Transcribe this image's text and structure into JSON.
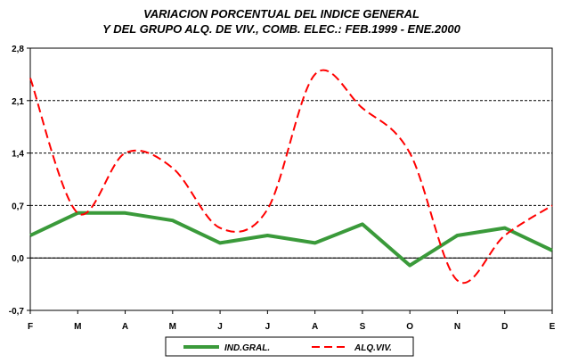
{
  "chart_data": {
    "type": "line",
    "title_lines": [
      "VARIACION PORCENTUAL DEL INDICE GENERAL",
      "Y DEL GRUPO ALQ. DE VIV., COMB.  ELEC.: FEB.1999 - ENE.2000"
    ],
    "categories": [
      "F",
      "M",
      "A",
      "M",
      "J",
      "J",
      "A",
      "S",
      "O",
      "N",
      "D",
      "E"
    ],
    "y_ticks": [
      "2,8",
      "2,1",
      "1,4",
      "0,7",
      "0,0",
      "-0,7"
    ],
    "y_tick_values": [
      2.8,
      2.1,
      1.4,
      0.7,
      0.0,
      -0.7
    ],
    "ylim": [
      -0.7,
      2.8
    ],
    "grid": "horizontal dashed",
    "legend_position": "bottom",
    "series": [
      {
        "name": "IND.GRAL.",
        "color": "#3a9a3a",
        "style": "solid",
        "values": [
          0.3,
          0.6,
          0.6,
          0.5,
          0.2,
          0.3,
          0.2,
          0.45,
          -0.1,
          0.3,
          0.4,
          0.1
        ]
      },
      {
        "name": "ALQ.VIV.",
        "color": "#ff0000",
        "style": "dashed",
        "values": [
          2.4,
          0.6,
          1.4,
          1.2,
          0.4,
          0.65,
          2.45,
          2.0,
          1.4,
          -0.3,
          0.3,
          0.7
        ]
      }
    ]
  }
}
